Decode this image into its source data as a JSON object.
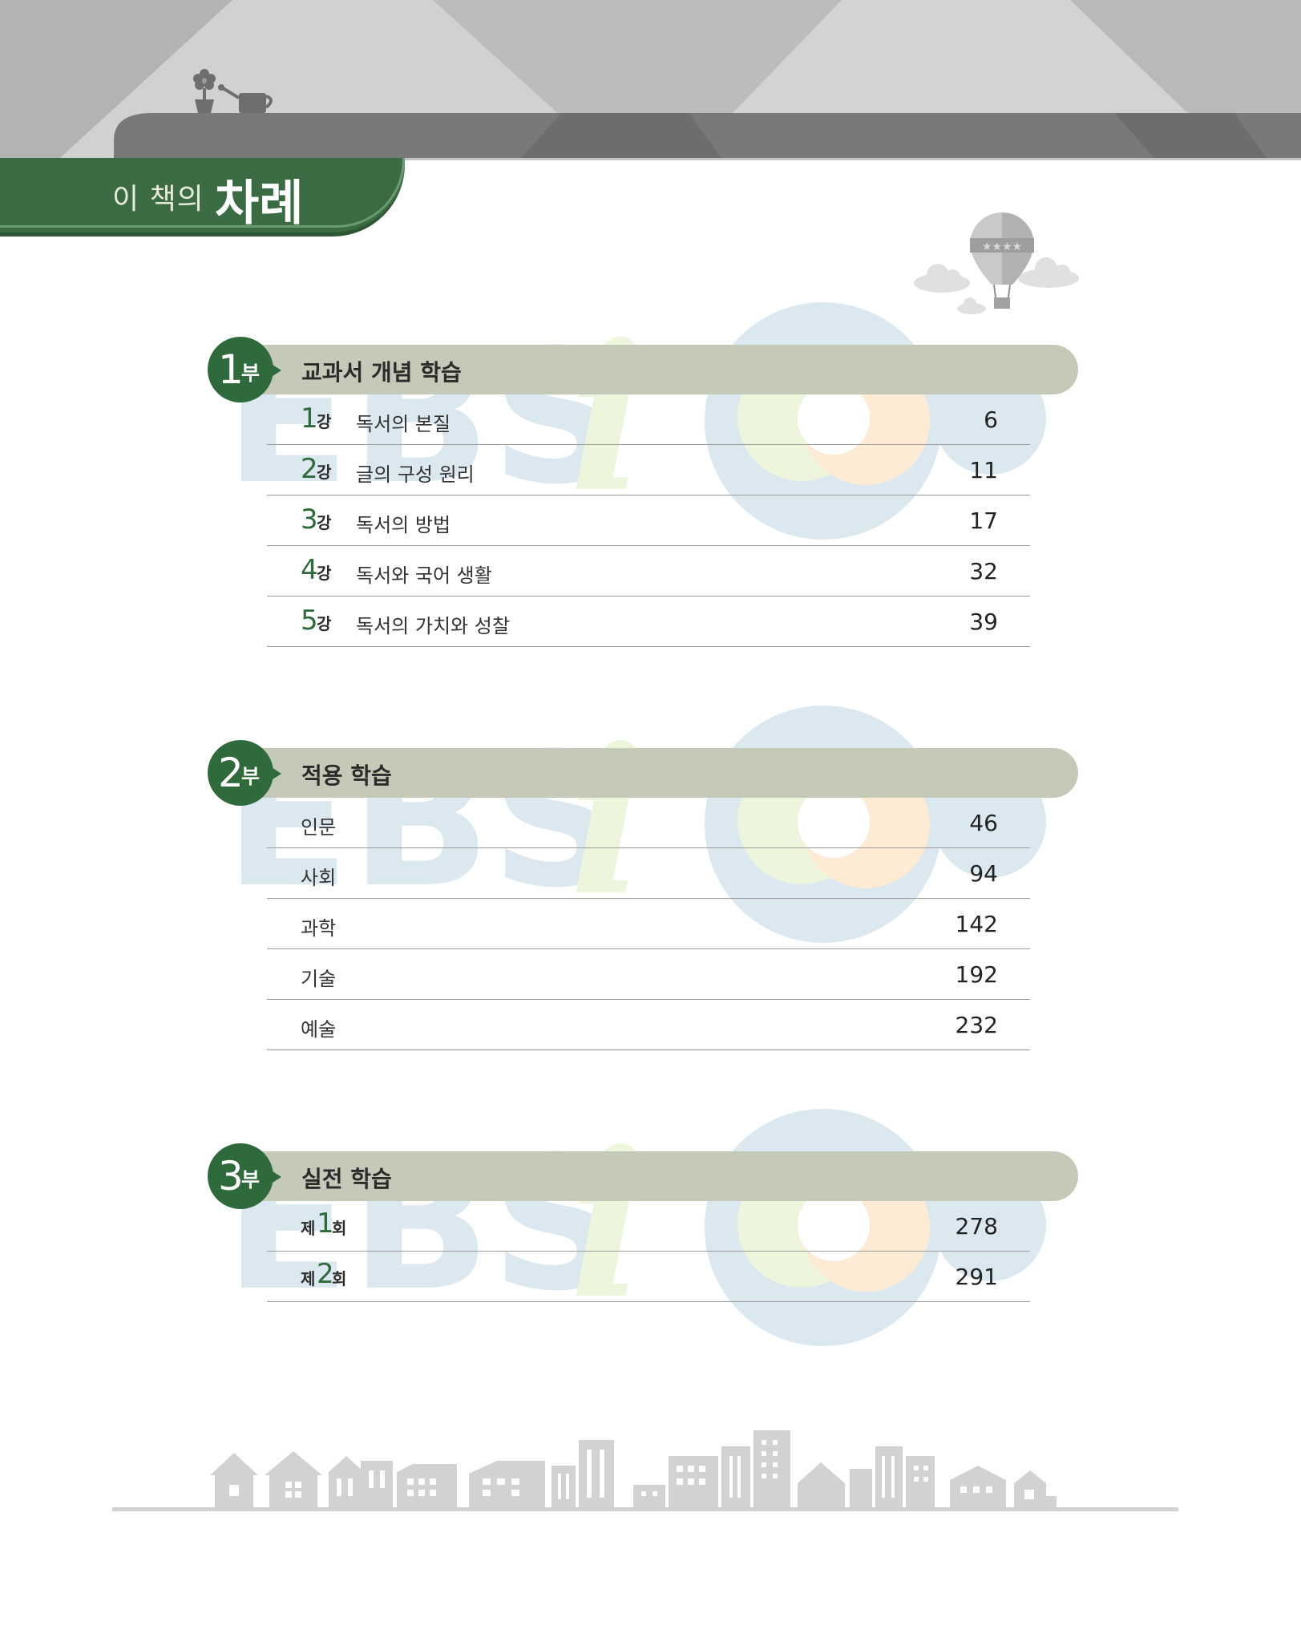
{
  "header": {
    "title_small": "이 책의",
    "title_big": "차례"
  },
  "parts": [
    {
      "number": "1",
      "suffix": "부",
      "title": "교과서 개념 학습",
      "rows": [
        {
          "num": "1",
          "unit": "강",
          "title": "독서의 본질",
          "page": "6"
        },
        {
          "num": "2",
          "unit": "강",
          "title": "글의 구성 원리",
          "page": "11"
        },
        {
          "num": "3",
          "unit": "강",
          "title": "독서의 방법",
          "page": "17"
        },
        {
          "num": "4",
          "unit": "강",
          "title": "독서와 국어 생활",
          "page": "32"
        },
        {
          "num": "5",
          "unit": "강",
          "title": "독서의 가치와 성찰",
          "page": "39"
        }
      ]
    },
    {
      "number": "2",
      "suffix": "부",
      "title": "적용 학습",
      "rows": [
        {
          "title": "인문",
          "page": "46"
        },
        {
          "title": "사회",
          "page": "94"
        },
        {
          "title": "과학",
          "page": "142"
        },
        {
          "title": "기술",
          "page": "192"
        },
        {
          "title": "예술",
          "page": "232"
        }
      ]
    },
    {
      "number": "3",
      "suffix": "부",
      "title": "실전 학습",
      "rows": [
        {
          "pre": "제",
          "num": "1",
          "post": "회",
          "page": "278"
        },
        {
          "pre": "제",
          "num": "2",
          "post": "회",
          "page": "291"
        }
      ]
    }
  ],
  "watermark": {
    "text": "EBS",
    "colors": {
      "blue": "#dce8f0",
      "green": "#eef5dd",
      "orange": "#fdebd6"
    }
  },
  "colors": {
    "accent_green": "#2f6a3c",
    "section_bar": "#c5cab8",
    "header_gray": "#b8b8b8"
  },
  "icons": [
    "flower-pot-icon",
    "watering-can-icon",
    "hot-air-balloon-icon",
    "cloud-icon",
    "city-skyline-icon"
  ]
}
